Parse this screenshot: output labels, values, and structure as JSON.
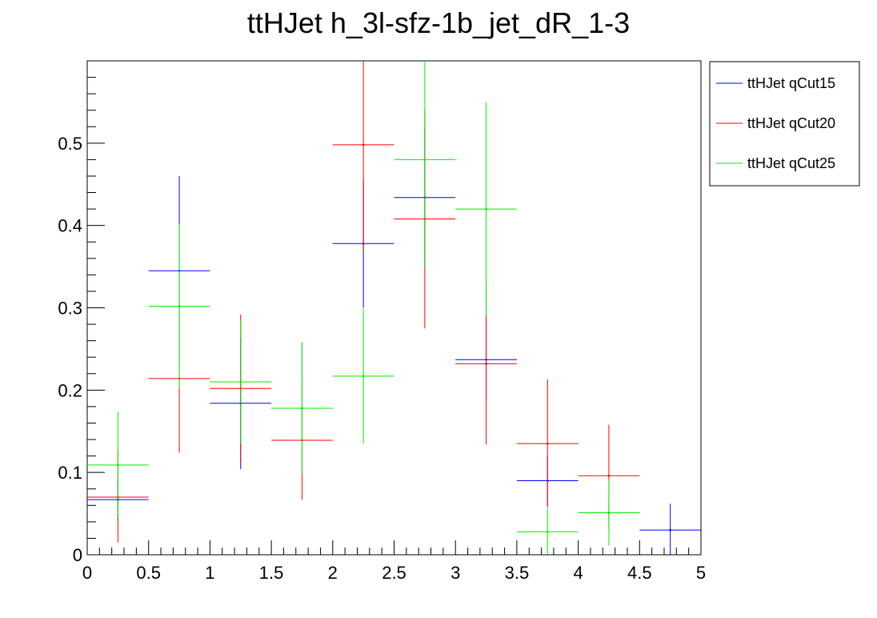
{
  "chart_data": {
    "type": "scatter",
    "title": "ttHJet h_3l-sfz-1b_jet_dR_1-3",
    "xlabel": "",
    "ylabel": "",
    "xlim": [
      0,
      5
    ],
    "ylim": [
      0,
      0.6
    ],
    "x_ticks": [
      0,
      0.5,
      1,
      1.5,
      2,
      2.5,
      3,
      3.5,
      4,
      4.5,
      5
    ],
    "x_tick_labels": [
      "0",
      "0.5",
      "1",
      "1.5",
      "2",
      "2.5",
      "3",
      "3.5",
      "4",
      "4.5",
      "5"
    ],
    "y_ticks": [
      0,
      0.1,
      0.2,
      0.3,
      0.4,
      0.5
    ],
    "y_tick_labels": [
      "0",
      "0.1",
      "0.2",
      "0.3",
      "0.4",
      "0.5"
    ],
    "bin_width": 0.5,
    "legend_position": "top-right outside",
    "series": [
      {
        "name": "ttHJet qCut15",
        "color": "#0000ff",
        "x": [
          0.25,
          0.75,
          1.25,
          1.75,
          2.25,
          2.75,
          3.25,
          3.75,
          4.25,
          4.75
        ],
        "y": [
          0.067,
          0.345,
          0.184,
          0.178,
          0.378,
          0.434,
          0.237,
          0.09,
          0.051,
          0.03
        ],
        "yerr": [
          0.025,
          0.115,
          0.08,
          0.08,
          0.078,
          0.085,
          0.05,
          0.03,
          0.022,
          0.032
        ]
      },
      {
        "name": "ttHJet qCut20",
        "color": "#ff0000",
        "x": [
          0.25,
          0.75,
          1.25,
          1.75,
          2.25,
          2.75,
          3.25,
          3.75,
          4.25,
          4.75
        ],
        "y": [
          0.07,
          0.214,
          0.202,
          0.139,
          0.498,
          0.408,
          0.232,
          0.135,
          0.096,
          0.0
        ],
        "yerr": [
          0.055,
          0.09,
          0.09,
          0.072,
          0.13,
          0.133,
          0.098,
          0.078,
          0.062,
          0.0
        ]
      },
      {
        "name": "ttHJet qCut25",
        "color": "#00ee00",
        "x": [
          0.25,
          0.75,
          1.25,
          1.75,
          2.25,
          2.75,
          3.25,
          3.75,
          4.25,
          4.75
        ],
        "y": [
          0.109,
          0.302,
          0.21,
          0.178,
          0.217,
          0.48,
          0.42,
          0.028,
          0.051,
          0.0
        ],
        "yerr": [
          0.065,
          0.1,
          0.075,
          0.08,
          0.082,
          0.13,
          0.13,
          0.028,
          0.04,
          0.0
        ]
      }
    ]
  }
}
